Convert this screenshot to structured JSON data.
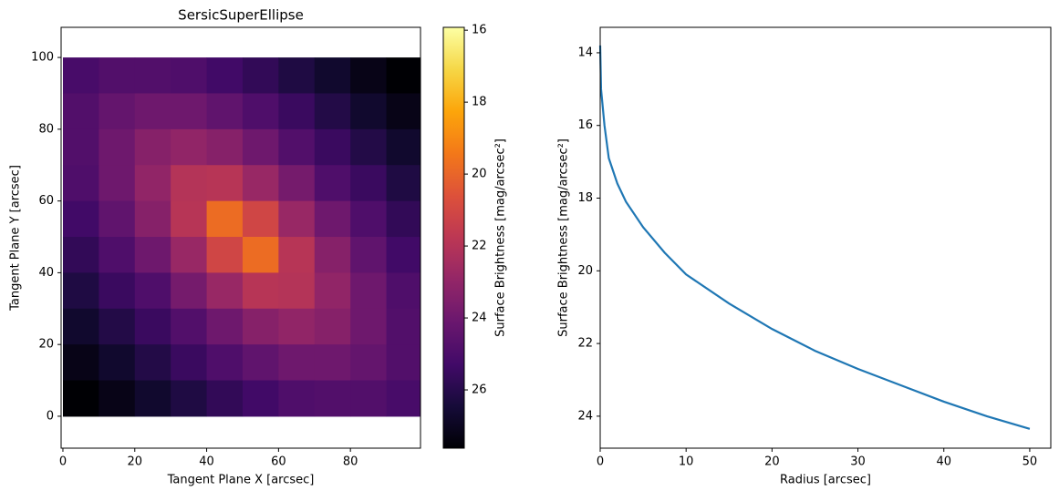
{
  "chart_data": [
    {
      "type": "heatmap",
      "title": "SersicSuperEllipse",
      "xlabel": "Tangent Plane X [arcsec]",
      "ylabel": "Tangent Plane Y [arcsec]",
      "x": [
        5,
        15,
        25,
        35,
        45,
        55,
        65,
        75,
        85,
        95
      ],
      "y": [
        95,
        85,
        75,
        65,
        55,
        45,
        35,
        25,
        15,
        5
      ],
      "z": [
        [
          25.1,
          24.8,
          24.8,
          24.9,
          25.3,
          25.7,
          26.2,
          26.7,
          27.2,
          27.7
        ],
        [
          24.8,
          24.3,
          24.0,
          24.0,
          24.4,
          24.9,
          25.5,
          26.1,
          26.7,
          27.2
        ],
        [
          24.8,
          24.0,
          23.3,
          23.0,
          23.3,
          24.0,
          24.8,
          25.5,
          26.1,
          26.7
        ],
        [
          24.9,
          24.0,
          23.0,
          22.0,
          21.9,
          22.8,
          23.8,
          24.9,
          25.5,
          26.2
        ],
        [
          25.3,
          24.4,
          23.3,
          21.9,
          19.8,
          21.1,
          22.8,
          24.0,
          24.9,
          25.7
        ],
        [
          25.7,
          24.9,
          24.0,
          22.8,
          21.1,
          19.8,
          21.9,
          23.3,
          24.4,
          25.3
        ],
        [
          26.2,
          25.5,
          24.9,
          23.8,
          22.8,
          21.9,
          22.0,
          23.0,
          24.0,
          24.9
        ],
        [
          26.7,
          26.1,
          25.5,
          24.8,
          24.0,
          23.3,
          23.0,
          23.3,
          24.0,
          24.8
        ],
        [
          27.2,
          26.7,
          26.1,
          25.5,
          24.9,
          24.4,
          24.0,
          24.0,
          24.3,
          24.8
        ],
        [
          27.7,
          27.2,
          26.7,
          26.2,
          25.7,
          25.3,
          24.9,
          24.8,
          24.8,
          25.1
        ]
      ],
      "xlim": [
        -0.5,
        99.5
      ],
      "ylim": [
        -8.9,
        108.4
      ],
      "xticks": [
        0,
        20,
        40,
        60,
        80
      ],
      "yticks": [
        0,
        20,
        40,
        60,
        80,
        100
      ],
      "colormap": "inferno_r",
      "colorbar": {
        "label": "Surface Brightness [mag/arcsec²]",
        "clim": [
          15.92,
          27.62
        ],
        "invert": true,
        "ticks": [
          16,
          18,
          20,
          22,
          24,
          26
        ]
      }
    },
    {
      "type": "line",
      "xlabel": "Radius [arcsec]",
      "ylabel": "Surface Brightness [mag/arcsec²]",
      "x": [
        0,
        0.1,
        0.5,
        1,
        2,
        3,
        5,
        7.5,
        10,
        15,
        20,
        25,
        30,
        35,
        40,
        45,
        50
      ],
      "values": [
        13.8,
        15.0,
        16.0,
        16.9,
        17.6,
        18.1,
        18.8,
        19.5,
        20.1,
        20.9,
        21.6,
        22.2,
        22.7,
        23.15,
        23.6,
        24.0,
        24.35
      ],
      "color": "#1f77b4",
      "xlim": [
        0,
        52.45
      ],
      "ylim": [
        13.3,
        24.88
      ],
      "invert_y": true,
      "xticks": [
        0,
        10,
        20,
        30,
        40,
        50
      ],
      "yticks": [
        14,
        16,
        18,
        20,
        22,
        24
      ]
    }
  ]
}
